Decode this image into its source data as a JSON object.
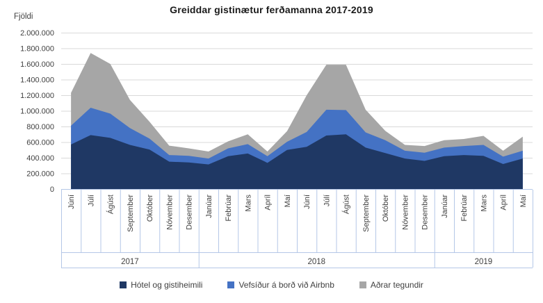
{
  "chart_data": {
    "type": "area",
    "stacked": true,
    "title": "Greiddar gistinætur ferðamanna 2017-2019",
    "ylabel": "Fjöldi",
    "xlabel": "",
    "grid": true,
    "legend_position": "bottom",
    "ylim": [
      0,
      2000000
    ],
    "y_ticks": [
      {
        "value": 0,
        "label": "0"
      },
      {
        "value": 200000,
        "label": "200.000"
      },
      {
        "value": 400000,
        "label": "400.000"
      },
      {
        "value": 600000,
        "label": "600.000"
      },
      {
        "value": 800000,
        "label": "800.000"
      },
      {
        "value": 1000000,
        "label": "1.000.000"
      },
      {
        "value": 1200000,
        "label": "1.200.000"
      },
      {
        "value": 1400000,
        "label": "1.400.000"
      },
      {
        "value": 1600000,
        "label": "1.600.000"
      },
      {
        "value": 1800000,
        "label": "1.800.000"
      },
      {
        "value": 2000000,
        "label": "2.000.000"
      }
    ],
    "categories": [
      "Júní",
      "Júlí",
      "Ágúst",
      "September",
      "Október",
      "Nóvember",
      "Desember",
      "Janúar",
      "Febrúar",
      "Mars",
      "Apríl",
      "Maí",
      "Júní",
      "Júlí",
      "Ágúst",
      "September",
      "Október",
      "Nóvember",
      "Desember",
      "Janúar",
      "Febrúar",
      "Mars",
      "Apríl",
      "Maí"
    ],
    "year_groups": [
      {
        "label": "2017",
        "count": 7
      },
      {
        "label": "2018",
        "count": 12
      },
      {
        "label": "2019",
        "count": 5
      }
    ],
    "series": [
      {
        "id": "hotel",
        "name": "Hótel og gistiheimili",
        "color": "#1F3864",
        "values": [
          570000,
          690000,
          655000,
          565000,
          505000,
          350000,
          340000,
          315000,
          420000,
          455000,
          335000,
          500000,
          540000,
          685000,
          700000,
          530000,
          460000,
          390000,
          360000,
          420000,
          435000,
          425000,
          320000,
          390000
        ]
      },
      {
        "id": "airbnb",
        "name": "Vefsíður á borð við Airbnb",
        "color": "#4472C4",
        "values": [
          240000,
          350000,
          310000,
          215000,
          140000,
          85000,
          85000,
          75000,
          100000,
          120000,
          85000,
          105000,
          190000,
          330000,
          310000,
          195000,
          165000,
          100000,
          105000,
          110000,
          115000,
          140000,
          95000,
          100000
        ]
      },
      {
        "id": "other",
        "name": "Aðrar tegundir",
        "color": "#A6A6A6",
        "values": [
          420000,
          700000,
          635000,
          360000,
          215000,
          120000,
          95000,
          90000,
          90000,
          125000,
          60000,
          135000,
          470000,
          575000,
          580000,
          290000,
          120000,
          75000,
          85000,
          95000,
          90000,
          115000,
          75000,
          180000
        ]
      }
    ],
    "colors": {
      "gridline": "#D9D9D9",
      "axis_border": "#B4C7E7",
      "text": "#404040"
    }
  }
}
